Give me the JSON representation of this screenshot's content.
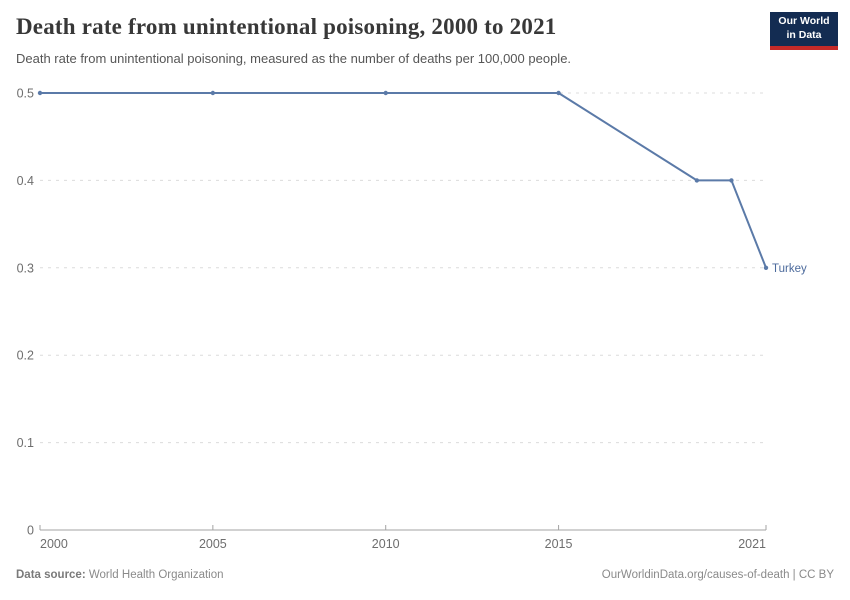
{
  "header": {
    "title": "Death rate from unintentional poisoning, 2000 to 2021",
    "subtitle": "Death rate from unintentional poisoning, measured as the number of deaths per 100,000 people.",
    "logo_line1": "Our World",
    "logo_line2": "in Data"
  },
  "chart_data": {
    "type": "line",
    "title": "Death rate from unintentional poisoning, 2000 to 2021",
    "xlabel": "",
    "ylabel": "",
    "xlim": [
      2000,
      2021
    ],
    "ylim": [
      0,
      0.5
    ],
    "xticks": [
      2000,
      2005,
      2010,
      2015,
      2021
    ],
    "xtick_labels": [
      "2000",
      "2005",
      "2010",
      "2015",
      "2021"
    ],
    "yticks": [
      0,
      0.1,
      0.2,
      0.3,
      0.4,
      0.5
    ],
    "ytick_labels": [
      "0",
      "0.1",
      "0.2",
      "0.3",
      "0.4",
      "0.5"
    ],
    "grid": "horizontal-dashed",
    "legend_position": "end-of-line-label",
    "series": [
      {
        "name": "Turkey",
        "x": [
          2000,
          2005,
          2010,
          2015,
          2019,
          2020,
          2021
        ],
        "values": [
          0.5,
          0.5,
          0.5,
          0.5,
          0.4,
          0.4,
          0.3
        ]
      }
    ],
    "line_color": "#5b7aa8",
    "entity_label_color": "#4c6a9c",
    "grid_color": "#dcdcdc",
    "axis_color": "#a3a3a3",
    "axis_label_color": "#6e6e6e"
  },
  "footer": {
    "source_label": "Data source:",
    "source_value": " World Health Organization",
    "link_text": "OurWorldinData.org/causes-of-death | CC BY"
  }
}
